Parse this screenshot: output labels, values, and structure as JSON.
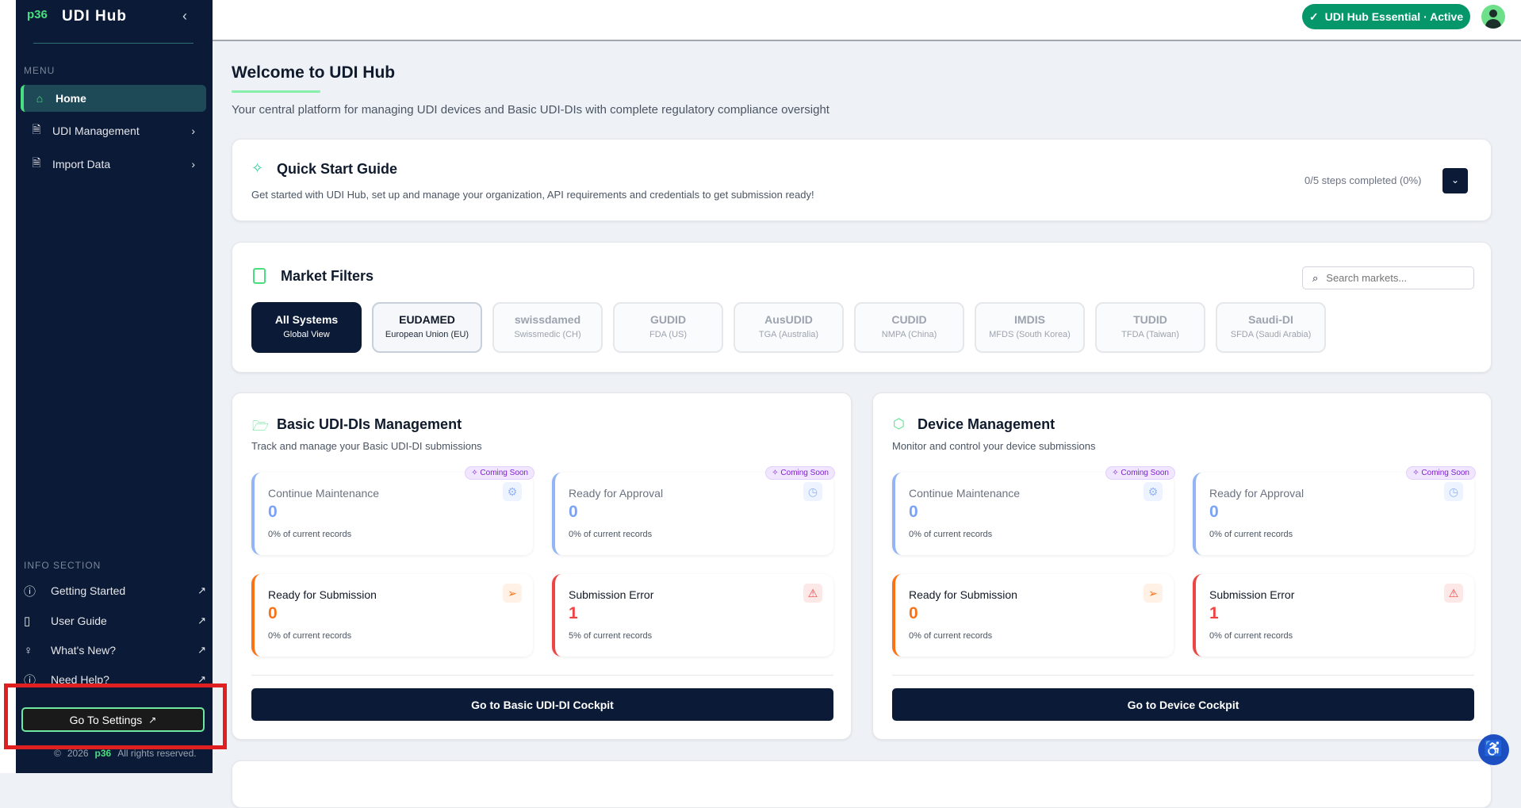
{
  "sidebar": {
    "logo": "p36",
    "brand": "UDI Hub",
    "menu_label": "MENU",
    "items": [
      {
        "label": "Home",
        "icon": "home-icon"
      },
      {
        "label": "UDI Management",
        "icon": "file-check-icon"
      },
      {
        "label": "Import Data",
        "icon": "file-text-icon"
      }
    ],
    "info_label": "INFO SECTION",
    "info_items": [
      {
        "label": "Getting Started"
      },
      {
        "label": "User Guide"
      },
      {
        "label": "What's New?"
      },
      {
        "label": "Need Help?"
      }
    ],
    "settings": "Go To Settings",
    "footer": {
      "year": "2026",
      "logo": "p36",
      "rights": "All rights reserved."
    }
  },
  "topbar": {
    "badge": "UDI Hub Essential · Active"
  },
  "main": {
    "title": "Welcome to UDI Hub",
    "subtitle": "Your central platform for managing UDI devices and Basic UDI-DIs with complete regulatory compliance oversight",
    "quick_start": {
      "title": "Quick Start Guide",
      "desc": "Get started with UDI Hub, set up and manage your organization, API requirements and credentials to get submission ready!",
      "progress": "0/5 steps completed (0%)"
    },
    "market": {
      "title": "Market Filters",
      "search_placeholder": "Search markets...",
      "chips": [
        {
          "name": "All Systems",
          "region": "Global View"
        },
        {
          "name": "EUDAMED",
          "region": "European Union (EU)"
        },
        {
          "name": "swissdamed",
          "region": "Swissmedic (CH)"
        },
        {
          "name": "GUDID",
          "region": "FDA (US)"
        },
        {
          "name": "AusUDID",
          "region": "TGA (Australia)"
        },
        {
          "name": "CUDID",
          "region": "NMPA (China)"
        },
        {
          "name": "IMDIS",
          "region": "MFDS (South Korea)"
        },
        {
          "name": "TUDID",
          "region": "TFDA (Taiwan)"
        },
        {
          "name": "Saudi-DI",
          "region": "SFDA (Saudi Arabia)"
        }
      ]
    },
    "coming_soon": "Coming Soon",
    "basic": {
      "title": "Basic UDI-DIs Management",
      "desc": "Track and manage your Basic UDI-DI submissions",
      "button": "Go to Basic UDI-DI Cockpit",
      "stats": [
        {
          "label": "Continue Maintenance",
          "value": "0",
          "pct": "0% of current records"
        },
        {
          "label": "Ready for Approval",
          "value": "0",
          "pct": "0% of current records"
        },
        {
          "label": "Ready for Submission",
          "value": "0",
          "pct": "0% of current records"
        },
        {
          "label": "Submission Error",
          "value": "1",
          "pct": "5% of current records"
        }
      ]
    },
    "device": {
      "title": "Device Management",
      "desc": "Monitor and control your device submissions",
      "button": "Go to Device Cockpit",
      "stats": [
        {
          "label": "Continue Maintenance",
          "value": "0",
          "pct": "0% of current records"
        },
        {
          "label": "Ready for Approval",
          "value": "0",
          "pct": "0% of current records"
        },
        {
          "label": "Ready for Submission",
          "value": "0",
          "pct": "0% of current records"
        },
        {
          "label": "Submission Error",
          "value": "1",
          "pct": "0% of current records"
        }
      ]
    }
  },
  "colors": {
    "sidebar": "#0b1a36",
    "accent": "#4ade80",
    "badge": "#059669",
    "blue": "#93b4f5",
    "orange": "#f97316",
    "red": "#ef4444"
  }
}
